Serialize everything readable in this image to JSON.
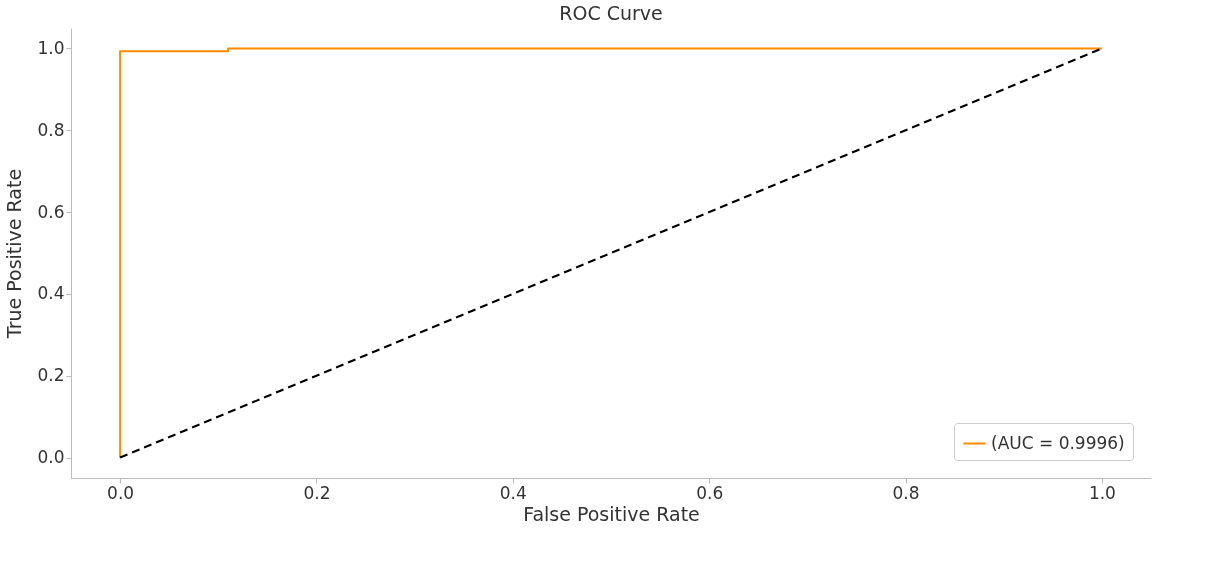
{
  "chart_data": {
    "type": "line",
    "title": "ROC Curve",
    "xlabel": "False Positive Rate",
    "ylabel": "True Positive Rate",
    "series": [
      {
        "name": "(AUC = 0.9996)",
        "color": "#ff8c00",
        "x": [
          0,
          0,
          0.11,
          0.11,
          1
        ],
        "values": [
          0,
          0.993,
          0.993,
          1,
          1
        ]
      },
      {
        "color": "#000000",
        "x": [
          0,
          1
        ],
        "values": [
          0,
          1
        ],
        "line_style": "dashed"
      }
    ],
    "xlim": [
      -0.05,
      1.05
    ],
    "ylim": [
      -0.05,
      1.05
    ],
    "xticks": [
      {
        "value": 0,
        "label": "0.0"
      },
      {
        "value": 0.2,
        "label": "0.2"
      },
      {
        "value": 0.4,
        "label": "0.4"
      },
      {
        "value": 0.6,
        "label": "0.6"
      },
      {
        "value": 0.8,
        "label": "0.8"
      },
      {
        "value": 1,
        "label": "1.0"
      }
    ],
    "yticks": [
      {
        "value": 0,
        "label": "0.0"
      },
      {
        "value": 0.2,
        "label": "0.2"
      },
      {
        "value": 0.4,
        "label": "0.4"
      },
      {
        "value": 0.6,
        "label": "0.6"
      },
      {
        "value": 0.8,
        "label": "0.8"
      },
      {
        "value": 1,
        "label": "1.0"
      }
    ],
    "grid": false,
    "legend": "bottom right"
  }
}
